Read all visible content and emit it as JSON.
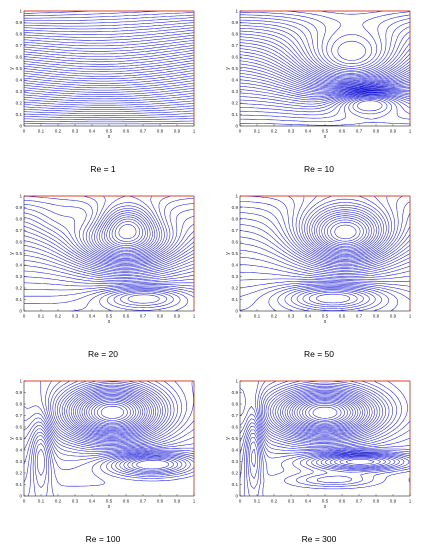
{
  "figure": {
    "line_color": "#1a1ad6",
    "top_lid_color": "#e0432c",
    "axis_color": "#222222"
  },
  "chart_data": [
    {
      "type": "contour",
      "caption": "Re = 1",
      "xlabel": "x",
      "ylabel": "y",
      "xlim": [
        0,
        1
      ],
      "ylim": [
        0,
        1
      ],
      "xticks": [
        "0",
        "0.1",
        "0.2",
        "0.3",
        "0.4",
        "0.5",
        "0.6",
        "0.7",
        "0.8",
        "0.9",
        "1"
      ],
      "yticks": [
        "0",
        "0.1",
        "0.2",
        "0.3",
        "0.4",
        "0.5",
        "0.6",
        "0.7",
        "0.8",
        "0.9",
        "1"
      ],
      "re": 1
    },
    {
      "type": "contour",
      "caption": "Re = 10",
      "xlabel": "x",
      "ylabel": "y",
      "xlim": [
        0,
        1
      ],
      "ylim": [
        0,
        1
      ],
      "xticks": [
        "0",
        "0.1",
        "0.2",
        "0.3",
        "0.4",
        "0.5",
        "0.6",
        "0.7",
        "0.8",
        "0.9",
        "1"
      ],
      "yticks": [
        "0",
        "0.1",
        "0.2",
        "0.3",
        "0.4",
        "0.5",
        "0.6",
        "0.7",
        "0.8",
        "0.9",
        "1"
      ],
      "re": 10
    },
    {
      "type": "contour",
      "caption": "Re = 20",
      "xlabel": "x",
      "ylabel": "y",
      "xlim": [
        0,
        1
      ],
      "ylim": [
        0,
        1
      ],
      "xticks": [
        "0",
        "0.1",
        "0.2",
        "0.3",
        "0.4",
        "0.5",
        "0.6",
        "0.7",
        "0.8",
        "0.9",
        "1"
      ],
      "yticks": [
        "0",
        "0.1",
        "0.2",
        "0.3",
        "0.4",
        "0.5",
        "0.6",
        "0.7",
        "0.8",
        "0.9",
        "1"
      ],
      "re": 20
    },
    {
      "type": "contour",
      "caption": "Re = 50",
      "xlabel": "x",
      "ylabel": "y",
      "xlim": [
        0,
        1
      ],
      "ylim": [
        0,
        1
      ],
      "xticks": [
        "0",
        "0.1",
        "0.2",
        "0.3",
        "0.4",
        "0.5",
        "0.6",
        "0.7",
        "0.8",
        "0.9",
        "1"
      ],
      "yticks": [
        "0",
        "0.1",
        "0.2",
        "0.3",
        "0.4",
        "0.5",
        "0.6",
        "0.7",
        "0.8",
        "0.9",
        "1"
      ],
      "re": 50
    },
    {
      "type": "contour",
      "caption": "Re = 100",
      "xlabel": "x",
      "ylabel": "y",
      "xlim": [
        0,
        1
      ],
      "ylim": [
        0,
        1
      ],
      "xticks": [
        "0",
        "0.1",
        "0.2",
        "0.3",
        "0.4",
        "0.5",
        "0.6",
        "0.7",
        "0.8",
        "0.9",
        "1"
      ],
      "yticks": [
        "0",
        "0.1",
        "0.2",
        "0.3",
        "0.4",
        "0.5",
        "0.6",
        "0.7",
        "0.8",
        "0.9",
        "1"
      ],
      "re": 100
    },
    {
      "type": "contour",
      "caption": "Re = 300",
      "xlabel": "x",
      "ylabel": "y",
      "xlim": [
        0,
        1
      ],
      "ylim": [
        0,
        1
      ],
      "xticks": [
        "0",
        "0.1",
        "0.2",
        "0.3",
        "0.4",
        "0.5",
        "0.6",
        "0.7",
        "0.8",
        "0.9",
        "1"
      ],
      "yticks": [
        "0",
        "0.1",
        "0.2",
        "0.3",
        "0.4",
        "0.5",
        "0.6",
        "0.7",
        "0.8",
        "0.9",
        "1"
      ],
      "re": 300
    }
  ]
}
